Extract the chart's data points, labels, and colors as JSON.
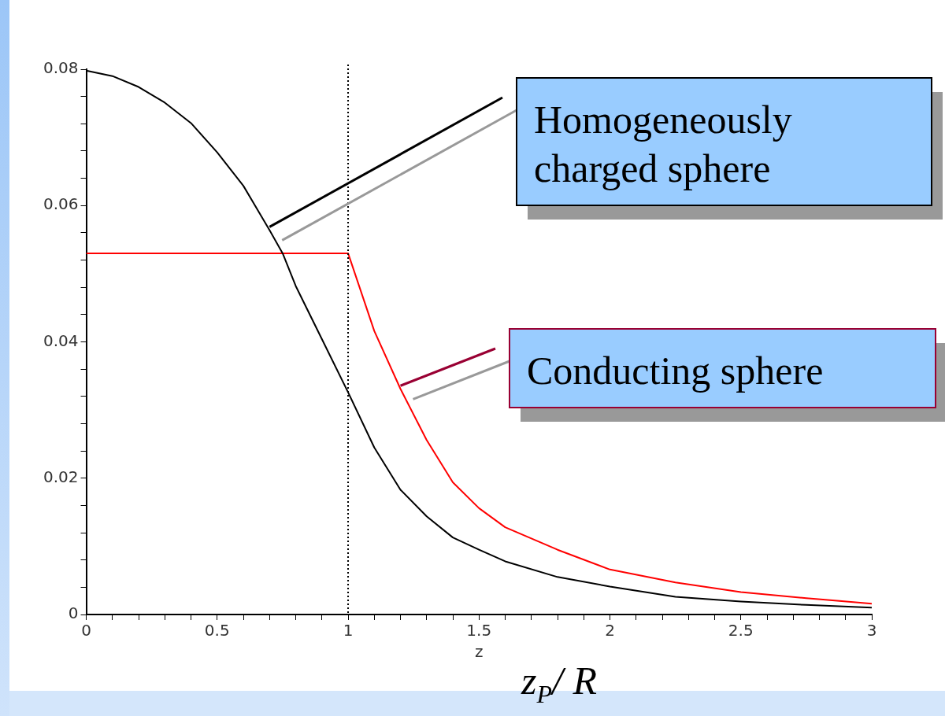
{
  "chart_data": {
    "type": "line",
    "xlabel": "z",
    "x": [
      0,
      0.1,
      0.2,
      0.3,
      0.4,
      0.5,
      0.6,
      0.7,
      0.75,
      0.8,
      0.9,
      1,
      1.1,
      1.2,
      1.3,
      1.4,
      1.5,
      1.6,
      1.8,
      2,
      2.25,
      2.5,
      2.75,
      3
    ],
    "series": [
      {
        "color": "#000000",
        "values": [
          0.0798,
          0.079,
          0.0774,
          0.0751,
          0.0721,
          0.0678,
          0.0629,
          0.0564,
          0.053,
          0.0482,
          0.0404,
          0.0326,
          0.0245,
          0.0183,
          0.0144,
          0.0113,
          0.0095,
          0.0078,
          0.0055,
          0.0041,
          0.0026,
          0.0019,
          0.0014,
          0.001
        ]
      },
      {
        "color": "#ff0000",
        "x": [
          0,
          1,
          1.1,
          1.2,
          1.3,
          1.4,
          1.5,
          1.6,
          1.8,
          2,
          2.25,
          2.5,
          2.75,
          3
        ],
        "values": [
          0.053,
          0.053,
          0.0416,
          0.0331,
          0.0256,
          0.0194,
          0.0156,
          0.0128,
          0.0095,
          0.0066,
          0.0047,
          0.0033,
          0.0024,
          0.0016
        ]
      }
    ],
    "xlim": [
      0,
      3
    ],
    "xticks": [
      0,
      {
        "value": 0.1,
        "label": null
      },
      {
        "value": 0.2,
        "label": null
      },
      {
        "value": 0.3,
        "label": null
      },
      {
        "value": 0.4,
        "label": null
      },
      0.5,
      {
        "value": 0.6,
        "label": null
      },
      {
        "value": 0.7,
        "label": null
      },
      {
        "value": 0.8,
        "label": null
      },
      {
        "value": 0.9,
        "label": null
      },
      1,
      {
        "value": 1.1,
        "label": null
      },
      {
        "value": 1.2,
        "label": null
      },
      {
        "value": 1.3,
        "label": null
      },
      {
        "value": 1.4,
        "label": null
      },
      1.5,
      {
        "value": 1.6,
        "label": null
      },
      {
        "value": 1.7,
        "label": null
      },
      {
        "value": 1.8,
        "label": null
      },
      {
        "value": 1.9,
        "label": null
      },
      2,
      {
        "value": 2.1,
        "label": null
      },
      {
        "value": 2.2,
        "label": null
      },
      {
        "value": 2.3,
        "label": null
      },
      {
        "value": 2.4,
        "label": null
      },
      2.5,
      {
        "value": 2.6,
        "label": null
      },
      {
        "value": 2.7,
        "label": null
      },
      {
        "value": 2.8,
        "label": null
      },
      {
        "value": 2.9,
        "label": null
      },
      3
    ],
    "ylim": [
      0,
      0.08
    ],
    "yticks": [
      0,
      {
        "value": 0.004,
        "label": null
      },
      {
        "value": 0.008,
        "label": null
      },
      {
        "value": 0.012,
        "label": null
      },
      {
        "value": 0.016,
        "label": null
      },
      0.02,
      {
        "value": 0.024,
        "label": null
      },
      {
        "value": 0.028,
        "label": null
      },
      {
        "value": 0.032,
        "label": null
      },
      {
        "value": 0.036,
        "label": null
      },
      0.04,
      {
        "value": 0.044,
        "label": null
      },
      {
        "value": 0.048,
        "label": null
      },
      {
        "value": 0.052,
        "label": null
      },
      {
        "value": 0.056,
        "label": null
      },
      0.06,
      {
        "value": 0.064,
        "label": null
      },
      {
        "value": 0.068,
        "label": null
      },
      {
        "value": 0.072,
        "label": null
      },
      {
        "value": 0.076,
        "label": null
      },
      0.08
    ],
    "ref_lines": [
      {
        "axis": "x",
        "value": 1,
        "color": "#000000",
        "line_style": "dotted"
      }
    ],
    "annotations": [
      {
        "text": "Homogeneously charged sphere",
        "x": 0.7,
        "y": 0.0564
      },
      {
        "text": "Conducting sphere",
        "x": 1.2,
        "y": 0.0331
      },
      "z$_{P}$/ R"
    ],
    "grid": false,
    "legend": false,
    "marker": "none"
  }
}
